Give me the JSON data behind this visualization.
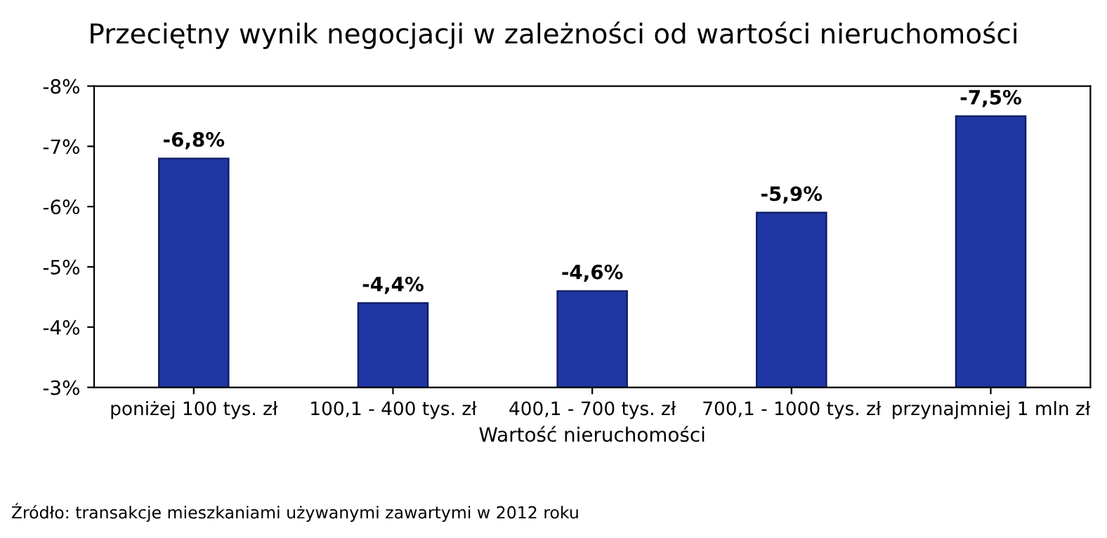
{
  "chart_data": {
    "type": "bar",
    "title": "Przeciętny wynik negocjacji w zależności od wartości nieruchomości",
    "xlabel": "Wartość nieruchomości",
    "categories": [
      "poniżej 100 tys. zł",
      "100,1 - 400 tys. zł",
      "400,1 - 700 tys. zł",
      "700,1 - 1000 tys. zł",
      "przynajmniej 1 mln zł"
    ],
    "values": [
      -6.8,
      -4.4,
      -4.6,
      -5.9,
      -7.5
    ],
    "value_labels": [
      "-6,8%",
      "-4,4%",
      "-4,6%",
      "-5,9%",
      "-7,5%"
    ],
    "color": "#1f36a3",
    "ylim": [
      -3,
      -8
    ],
    "yticks": [
      {
        "value": -3,
        "label": "-3%"
      },
      {
        "value": -4,
        "label": "-4%"
      },
      {
        "value": -5,
        "label": "-5%"
      },
      {
        "value": -6,
        "label": "-6%"
      },
      {
        "value": -7,
        "label": "-7%"
      },
      {
        "value": -8,
        "label": "-8%"
      }
    ],
    "annotations": [
      "Źródło: transakcje mieszkaniami używanymi zawartymi w 2012 roku"
    ]
  }
}
